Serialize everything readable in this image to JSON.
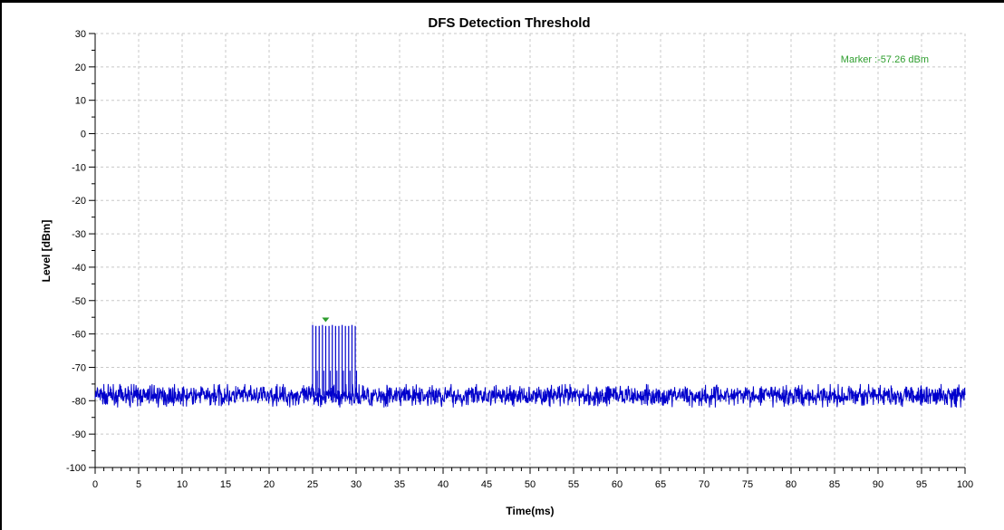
{
  "chart_data": {
    "type": "line",
    "title": "DFS Detection Threshold",
    "xlabel": "Time(ms)",
    "ylabel": "Level [dBm]",
    "xlim": [
      0,
      100
    ],
    "ylim": [
      -100,
      30
    ],
    "x_ticks": [
      0,
      5,
      10,
      15,
      20,
      25,
      30,
      35,
      40,
      45,
      50,
      55,
      60,
      65,
      70,
      75,
      80,
      85,
      90,
      95,
      100
    ],
    "y_ticks": [
      30,
      20,
      10,
      0,
      -10,
      -20,
      -30,
      -40,
      -50,
      -60,
      -70,
      -80,
      -90,
      -100
    ],
    "grid": true,
    "series": [
      {
        "color": "#0000cc",
        "noise_floor_dbm": -78.5,
        "noise_range_dbm": [
          -82,
          -75
        ],
        "pulses": {
          "time_ms_start": 25.0,
          "time_ms_end": 29.9,
          "count": 14,
          "peak_dbm": -57.3
        }
      }
    ],
    "marker": {
      "label": "Marker :-57.26 dBm",
      "x": 26.5,
      "y": -57.26,
      "color": "#2e9e2e"
    }
  }
}
